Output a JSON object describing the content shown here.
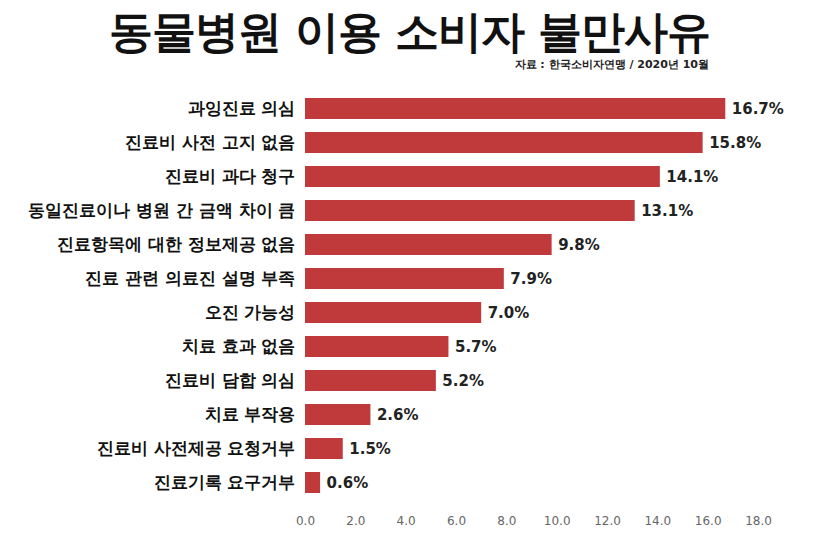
{
  "chart_data": {
    "type": "bar",
    "orientation": "horizontal",
    "title": "동물병원 이용 소비자 불만사유",
    "subtitle": "자료 : 한국소비자연맹 / 2020년 10월",
    "categories": [
      "과잉진료 의심",
      "진료비 사전 고지 없음",
      "진료비 과다 청구",
      "동일진료이나 병원 간 금액 차이 큼",
      "진료항목에 대한 정보제공 없음",
      "진료 관련 의료진 설명 부족",
      "오진 가능성",
      "치료 효과 없음",
      "진료비 담합 의심",
      "치료 부작용",
      "진료비 사전제공 요청거부",
      "진료기록 요구거부"
    ],
    "values": [
      16.7,
      15.8,
      14.1,
      13.1,
      9.8,
      7.9,
      7.0,
      5.7,
      5.2,
      2.6,
      1.5,
      0.6
    ],
    "value_labels": [
      "16.7%",
      "15.8%",
      "14.1%",
      "13.1%",
      "9.8%",
      "7.9%",
      "7.0%",
      "5.7%",
      "5.2%",
      "2.6%",
      "1.5%",
      "0.6%"
    ],
    "color": "#c0393b",
    "xlim": [
      0,
      18
    ],
    "xticks": [
      {
        "value": 0,
        "label": "0.0"
      },
      {
        "value": 2,
        "label": "2.0"
      },
      {
        "value": 4,
        "label": "4.0"
      },
      {
        "value": 6,
        "label": "6.0"
      },
      {
        "value": 8,
        "label": "8.0"
      },
      {
        "value": 10,
        "label": "10.0"
      },
      {
        "value": 12,
        "label": "12.0"
      },
      {
        "value": 14,
        "label": "14.0"
      },
      {
        "value": 16,
        "label": "16.0"
      },
      {
        "value": 18,
        "label": "18.0"
      }
    ],
    "grid": false,
    "data_labels": true
  }
}
